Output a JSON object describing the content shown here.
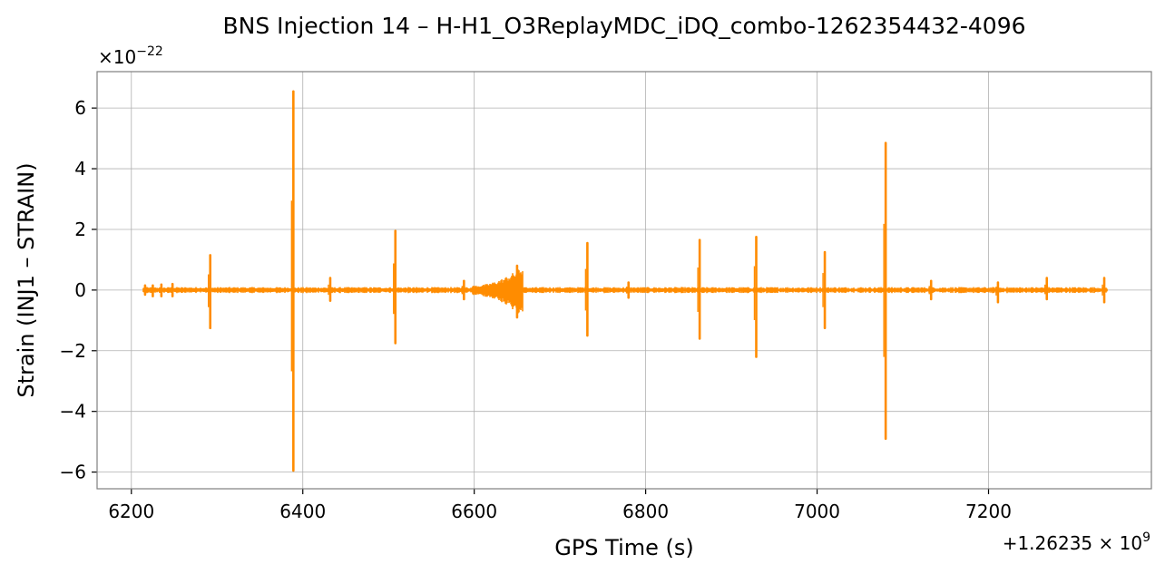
{
  "chart_data": {
    "type": "line",
    "title": "BNS Injection 14 – H-H1_O3ReplayMDC_iDQ_combo-1262354432-4096",
    "xlabel": "GPS Time (s)",
    "ylabel": "Strain (INJ1 – STRAIN)",
    "x_offset_label": "+1.26235×10^9",
    "y_multiplier_label": "×10^-22",
    "xlim": [
      6160,
      7390
    ],
    "ylim": [
      -6.55,
      7.2
    ],
    "xticks": [
      6200,
      6400,
      6600,
      6800,
      7000,
      7200
    ],
    "yticks": [
      -6,
      -4,
      -2,
      0,
      2,
      4,
      6
    ],
    "ytick_labels": [
      "−6",
      "−4",
      "−2",
      "0",
      "2",
      "4",
      "6"
    ],
    "grid": true,
    "series": [
      {
        "color": "#ff8c00",
        "x_range": [
          6215,
          7338
        ],
        "baseline_noise": 0.1,
        "bursts": [
          {
            "t": 6216,
            "max": 0.15,
            "min": -0.15
          },
          {
            "t": 6225,
            "max": 0.15,
            "min": -0.2
          },
          {
            "t": 6235,
            "max": 0.18,
            "min": -0.2
          },
          {
            "t": 6248,
            "max": 0.2,
            "min": -0.2
          },
          {
            "t": 6292,
            "max": 1.15,
            "min": -1.25
          },
          {
            "t": 6389,
            "max": 6.55,
            "min": -5.95
          },
          {
            "t": 6432,
            "max": 0.4,
            "min": -0.35
          },
          {
            "t": 6508,
            "max": 1.95,
            "min": -1.75
          },
          {
            "t": 6588,
            "max": 0.3,
            "min": -0.3
          },
          {
            "t": 6650,
            "max": 0.8,
            "min": -0.9
          },
          {
            "t": 6732,
            "max": 1.55,
            "min": -1.5
          },
          {
            "t": 6780,
            "max": 0.25,
            "min": -0.25
          },
          {
            "t": 6863,
            "max": 1.65,
            "min": -1.6
          },
          {
            "t": 6929,
            "max": 1.75,
            "min": -2.2
          },
          {
            "t": 7009,
            "max": 1.25,
            "min": -1.25
          },
          {
            "t": 7080,
            "max": 4.85,
            "min": -4.9
          },
          {
            "t": 7133,
            "max": 0.3,
            "min": -0.3
          },
          {
            "t": 7211,
            "max": 0.25,
            "min": -0.4
          },
          {
            "t": 7268,
            "max": 0.4,
            "min": -0.3
          },
          {
            "t": 7335,
            "max": 0.4,
            "min": -0.4
          }
        ],
        "chirp": {
          "start": 6598,
          "end": 6656,
          "max": 0.75,
          "min": -0.85
        }
      }
    ]
  }
}
